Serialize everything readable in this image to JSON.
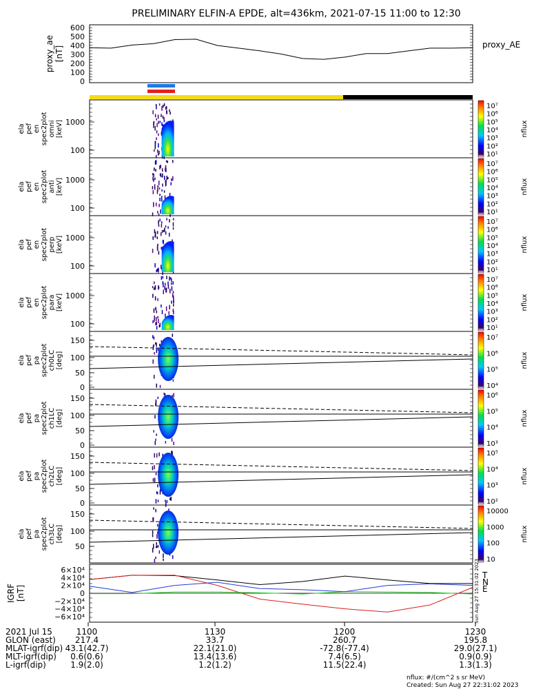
{
  "title": "PRELIMINARY ELFIN-A EPDE, alt=436km, 2021-07-15 11:00 to 12:30",
  "colors": {
    "bar_yellow": "#f5dc1a",
    "bar_black": "#000000",
    "bar_blue": "#1e78e6",
    "bar_red": "#e61e1e",
    "bx": "#000000",
    "by": "#d81e1e",
    "bz": "#1e3cd8",
    "bt": "#1ec81e"
  },
  "proxy_ae": {
    "ylabel": [
      "proxy_ae",
      "[nT]"
    ],
    "legend": "proxy_AE",
    "ticks": [
      "600",
      "500",
      "400",
      "300",
      "200",
      "100",
      "0"
    ]
  },
  "panels": [
    {
      "ylabel": [
        "ela",
        "pef",
        "en",
        "spec2plot",
        "omni",
        "[keV]"
      ],
      "ticks": [
        "1000",
        "100"
      ],
      "cb_ticks": [
        "10⁷",
        "10⁶",
        "10⁵",
        "10⁴",
        "10³",
        "10²",
        "10¹"
      ],
      "cb_label": "nflux"
    },
    {
      "ylabel": [
        "ela",
        "pef",
        "en",
        "spec2plot",
        "anti",
        "[keV]"
      ],
      "ticks": [
        "1000",
        "100"
      ],
      "cb_ticks": [
        "10⁷",
        "10⁶",
        "10⁵",
        "10⁴",
        "10³",
        "10²",
        "10¹"
      ],
      "cb_label": "nflux"
    },
    {
      "ylabel": [
        "ela",
        "pef",
        "en",
        "spec2plot",
        "perp",
        "[keV]"
      ],
      "ticks": [
        "1000",
        "100"
      ],
      "cb_ticks": [
        "10⁷",
        "10⁶",
        "10⁵",
        "10⁴",
        "10³",
        "10²",
        "10¹"
      ],
      "cb_label": "nflux"
    },
    {
      "ylabel": [
        "ela",
        "pef",
        "en",
        "spec2plot",
        "para",
        "[keV]"
      ],
      "ticks": [
        "1000",
        "100"
      ],
      "cb_ticks": [
        "10⁷",
        "10⁶",
        "10⁵",
        "10⁴",
        "10³",
        "10²",
        "10¹"
      ],
      "cb_label": "nflux"
    },
    {
      "ylabel": [
        "ela",
        "pef",
        "pa",
        "spec2plot",
        "ch0LC",
        "[deg]"
      ],
      "ticks": [
        "150",
        "100",
        "50",
        "0"
      ],
      "cb_ticks": [
        "10⁷",
        "10⁶",
        "10⁵",
        "10⁴"
      ],
      "cb_label": "nflux"
    },
    {
      "ylabel": [
        "ela",
        "pef",
        "pa",
        "spec2plot",
        "ch1LC",
        "[deg]"
      ],
      "ticks": [
        "150",
        "100",
        "50",
        "0"
      ],
      "cb_ticks": [
        "10⁶",
        "10⁵",
        "10⁴",
        "10³"
      ],
      "cb_label": "nflux"
    },
    {
      "ylabel": [
        "ela",
        "pef",
        "pa",
        "spec2plot",
        "ch2LC",
        "[deg]"
      ],
      "ticks": [
        "150",
        "100",
        "50",
        "0"
      ],
      "cb_ticks": [
        "10⁵",
        "10⁴",
        "10³",
        "10²"
      ],
      "cb_label": "nflux"
    },
    {
      "ylabel": [
        "ela",
        "pef",
        "pa",
        "spec2plot",
        "ch3LC",
        "[deg]"
      ],
      "ticks": [
        "150",
        "100",
        "50"
      ],
      "cb_ticks": [
        "10000",
        "1000",
        "100",
        "10"
      ],
      "cb_label": "nflux"
    }
  ],
  "igrf": {
    "ylabel": [
      "IGRF",
      "[nT]"
    ],
    "ticks": [
      "6×10⁴",
      "4×10⁴",
      "2×10⁴",
      "0",
      "−2×10⁴",
      "−4×10⁴",
      "−6×10⁴"
    ],
    "legend": [
      "T",
      "N",
      "E"
    ],
    "stamp": "Sun Aug 27 15:31:02 2023"
  },
  "time_axis": {
    "rows": [
      [
        "2021 Jul 15",
        "1100",
        "1130",
        "1200",
        "1230"
      ],
      [
        "GLON (east)",
        "217.4",
        "33.7",
        "260.7",
        "195.8"
      ],
      [
        "MLAT-igrf(dip)",
        "43.1(42.7)",
        "22.1(21.0)",
        "-72.8(-77.4)",
        "29.0(27.1)"
      ],
      [
        "MLT-igrf(dip)",
        "0.6(0.6)",
        "13.4(13.6)",
        "7.4(6.5)",
        "0.9(0.9)"
      ],
      [
        "L-igrf(dip)",
        "1.9(2.0)",
        "1.2(1.2)",
        "11.5(22.4)",
        "1.3(1.3)"
      ]
    ]
  },
  "footer": {
    "units": "nflux: #/(cm^2 s sr MeV)",
    "created": "Created: Sun Aug 27 22:31:02 2023"
  },
  "chart_data": {
    "type": "line",
    "title": "PRELIMINARY ELFIN-A EPDE, alt=436km, 2021-07-15 11:00 to 12:30",
    "x_range": [
      "11:00",
      "12:30"
    ],
    "x_tick_labels": [
      "1100",
      "1130",
      "1200",
      "1230"
    ],
    "series": [
      {
        "name": "proxy_AE",
        "x_min": [
          0,
          5,
          10,
          15,
          20,
          25,
          30,
          35,
          40,
          45,
          50,
          55,
          60,
          65,
          70,
          75,
          80,
          85,
          90
        ],
        "values": [
          375,
          370,
          405,
          420,
          465,
          470,
          400,
          370,
          340,
          305,
          255,
          245,
          270,
          310,
          310,
          340,
          370,
          370,
          375
        ]
      }
    ],
    "ylabel": "proxy_ae [nT]",
    "ylim": [
      0,
      600
    ],
    "igrf": {
      "ylim": [
        -60000,
        60000
      ],
      "x_min": [
        0,
        10,
        20,
        30,
        40,
        50,
        60,
        70,
        80,
        90
      ],
      "T": [
        35000,
        46000,
        45000,
        34000,
        22000,
        30000,
        44000,
        34000,
        25000,
        25000
      ],
      "N": [
        35000,
        46000,
        46000,
        20000,
        -15000,
        -28000,
        -40000,
        -48000,
        -30000,
        15000
      ],
      "E": [
        -1000,
        -1000,
        3000,
        3000,
        1000,
        -2000,
        4000,
        3000,
        2000,
        -2000
      ],
      "B": [
        18000,
        2000,
        20000,
        28000,
        12000,
        9000,
        4000,
        20000,
        24000,
        20000
      ]
    },
    "spectrogram_burst_minutes": [
      15,
      20
    ]
  }
}
